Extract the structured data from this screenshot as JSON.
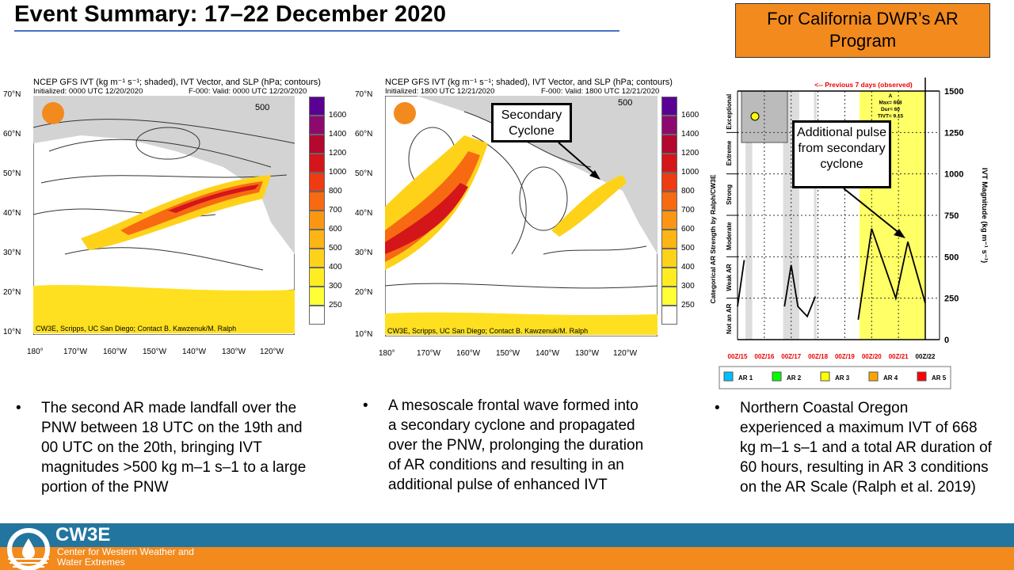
{
  "slide": {
    "title": "Event Summary: 17–22 December 2020",
    "program_box": "For California DWR’s AR Program"
  },
  "map_common": {
    "title_html": "NCEP GFS IVT (kg m⁻¹ s⁻¹; shaded), IVT Vector, and SLP (hPa; contours)",
    "credit": "CW3E, Scripps, UC San Diego; Contact B. Kawzenuk/M. Ralph",
    "logo_text": "Center for Western Weather and Water Extremes",
    "ref_vector": "500",
    "ref_units": "[kg m⁻¹ s⁻¹]",
    "lat_labels": [
      "70°N",
      "60°N",
      "50°N",
      "40°N",
      "30°N",
      "20°N",
      "10°N"
    ],
    "lon_labels": [
      "180°",
      "170°W",
      "160°W",
      "150°W",
      "140°W",
      "130°W",
      "120°W"
    ],
    "colorbar_levels": [
      "1600",
      "1400",
      "1200",
      "1000",
      "800",
      "700",
      "600",
      "500",
      "400",
      "300",
      "250"
    ],
    "colorbar_colors": [
      "#5b0094",
      "#8c0a6e",
      "#b4082f",
      "#d4161b",
      "#ee3b12",
      "#f76a12",
      "#fb9613",
      "#fdb415",
      "#ffd21a",
      "#ffed21",
      "#ffff37",
      "#ffffff"
    ]
  },
  "maps": [
    {
      "initialized": "Initialized: 0000 UTC 12/20/2020",
      "valid": "F-000: Valid: 0000 UTC 12/20/2020"
    },
    {
      "initialized": "Initialized: 1800 UTC 12/21/2020",
      "valid": "F-000: Valid: 1800 UTC 12/21/2020"
    }
  ],
  "callouts": {
    "secondary_cyclone": "Secondary Cyclone",
    "additional_pulse": "Additional pulse from secondary cyclone"
  },
  "chart_data": {
    "type": "line",
    "title": "<-- Previous 7 days (observed)",
    "ylabel": "IVT Magnitude (kg m⁻¹ s⁻¹)",
    "left_label": "Categorical AR Strength by Ralph/CW3E",
    "categories": [
      "Not an AR",
      "Weak AR",
      "Moderate",
      "Strong",
      "Extreme",
      "Exceptional"
    ],
    "ylim": [
      0,
      1500
    ],
    "yticks": [
      "0",
      "250",
      "500",
      "750",
      "1000",
      "1250",
      "1500"
    ],
    "xticks": [
      "00Z/15",
      "00Z/16",
      "00Z/17",
      "00Z/18",
      "00Z/19",
      "00Z/20",
      "00Z/21",
      "00Z/22"
    ],
    "series": [
      {
        "name": "IVT",
        "segments": [
          [
            [
              0,
              200
            ],
            [
              0.25,
              480
            ]
          ],
          [
            [
              1.75,
              200
            ],
            [
              2.0,
              450
            ],
            [
              2.25,
              200
            ],
            [
              2.6,
              140
            ],
            [
              2.9,
              260
            ]
          ],
          [
            [
              4.5,
              120
            ],
            [
              5.0,
              670
            ],
            [
              5.9,
              250
            ],
            [
              6.35,
              590
            ],
            [
              7.0,
              220
            ]
          ]
        ]
      }
    ],
    "ar_shading": {
      "label": "AR 3",
      "x_range": [
        4.55,
        7.0
      ]
    },
    "annotation": {
      "header": "A",
      "max": "Max= 668",
      "dur": "Dur= 60",
      "tivt": "TIVT= 9.15"
    },
    "legend": [
      "AR 1",
      "AR 2",
      "AR 3",
      "AR 4",
      "AR 5"
    ],
    "legend_colors": [
      "#00bfff",
      "#00ff00",
      "#ffff00",
      "#ffa500",
      "#ff0000"
    ]
  },
  "bullets": [
    "The second AR made landfall over the PNW between 18 UTC on the 19th and 00 UTC on the 20th, bringing IVT magnitudes >500 kg m–1 s–1 to a large portion of the PNW",
    "A mesoscale frontal wave formed into a secondary cyclone and propagated over the PNW, prolonging the duration of AR conditions and resulting in an additional pulse of enhanced IVT",
    "Northern Coastal Oregon experienced a maximum IVT of 668 kg m–1 s–1 and a total AR duration of 60 hours, resulting in AR 3 conditions on the AR Scale (Ralph et al. 2019)"
  ],
  "bullet_symbol": "•",
  "footer": {
    "name": "CW3E",
    "subtitle": "Center for Western Weather and Water Extremes"
  }
}
